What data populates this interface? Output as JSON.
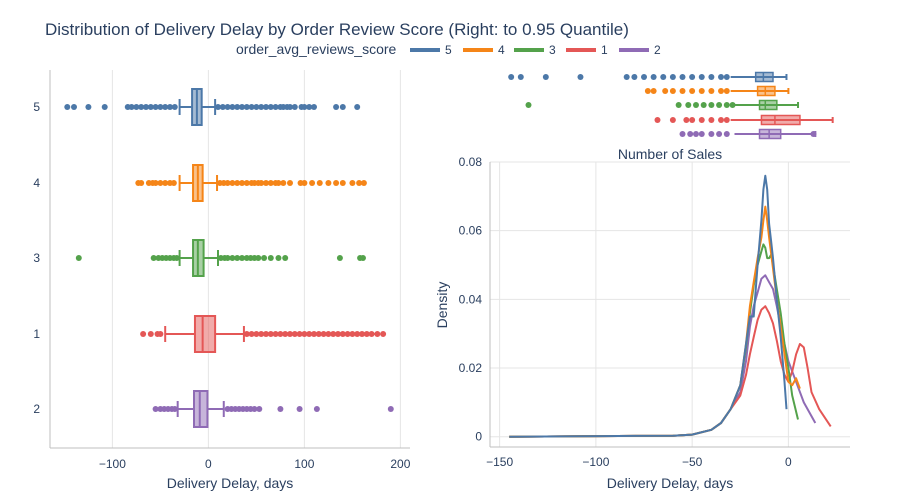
{
  "title": "Distribution of Delivery Delay by Order Review Score (Right: to 0.95 Quantile)",
  "legend": {
    "title": "order_avg_reviews_score",
    "items": [
      {
        "name": "5",
        "color": "#4c78a8"
      },
      {
        "name": "4",
        "color": "#f58518"
      },
      {
        "name": "3",
        "color": "#54a24b"
      },
      {
        "name": "1",
        "color": "#e45756"
      },
      {
        "name": "2",
        "color": "#8f6bb5"
      }
    ]
  },
  "chart_data": [
    {
      "type": "box",
      "orientation": "horizontal",
      "xlabel": "Delivery Delay, days",
      "xlim": [
        -165,
        210
      ],
      "xticks": [
        -100,
        0,
        100,
        200
      ],
      "xtick_labels": [
        "−100",
        "0",
        "100",
        "200"
      ],
      "categories": [
        "5",
        "4",
        "3",
        "1",
        "2"
      ],
      "grid": true,
      "series": [
        {
          "name": "5",
          "color": "#4c78a8",
          "q1": -17,
          "median": -12,
          "q3": -7,
          "whisker_low": -30,
          "whisker_high": 7,
          "outliers": [
            -147,
            -140,
            -125,
            -108,
            -84,
            -80,
            -75,
            -70,
            -65,
            -60,
            -55,
            -50,
            -45,
            -40,
            -35,
            10,
            15,
            20,
            25,
            30,
            35,
            40,
            45,
            50,
            55,
            60,
            65,
            70,
            75,
            78,
            82,
            85,
            90,
            97,
            100,
            105,
            110,
            133,
            140,
            155
          ]
        },
        {
          "name": "4",
          "color": "#f58518",
          "q1": -16,
          "median": -11,
          "q3": -6,
          "whisker_low": -30,
          "whisker_high": 9,
          "outliers": [
            -73,
            -70,
            -62,
            -58,
            -55,
            -50,
            -45,
            -40,
            -36,
            12,
            16,
            20,
            25,
            30,
            35,
            40,
            45,
            48,
            52,
            55,
            60,
            65,
            70,
            73,
            78,
            85,
            96,
            100,
            108,
            116,
            125,
            133,
            140,
            150,
            157,
            162
          ]
        },
        {
          "name": "3",
          "color": "#54a24b",
          "q1": -16,
          "median": -11,
          "q3": -5,
          "whisker_low": -30,
          "whisker_high": 10,
          "outliers": [
            -135,
            -57,
            -52,
            -48,
            -44,
            -40,
            -36,
            -33,
            13,
            17,
            20,
            25,
            30,
            35,
            40,
            44,
            48,
            52,
            58,
            65,
            73,
            80,
            137,
            158,
            161
          ]
        },
        {
          "name": "1",
          "color": "#e45756",
          "q1": -14,
          "median": -6,
          "q3": 7,
          "whisker_low": -45,
          "whisker_high": 37,
          "outliers": [
            -68,
            -60,
            -53,
            -50,
            40,
            45,
            50,
            55,
            60,
            65,
            70,
            75,
            80,
            85,
            90,
            95,
            100,
            105,
            110,
            115,
            120,
            125,
            130,
            135,
            140,
            145,
            150,
            155,
            160,
            165,
            170,
            176,
            182
          ]
        },
        {
          "name": "2",
          "color": "#8f6bb5",
          "q1": -15,
          "median": -9,
          "q3": -1,
          "whisker_low": -32,
          "whisker_high": 16,
          "outliers": [
            -55,
            -50,
            -46,
            -42,
            -38,
            -35,
            20,
            24,
            28,
            32,
            36,
            40,
            44,
            48,
            53,
            75,
            95,
            113,
            190
          ]
        }
      ]
    },
    {
      "type": "box",
      "orientation": "horizontal",
      "note": "top marginal box plots, truncated at 0.95 quantile",
      "categories": [
        "5",
        "4",
        "3",
        "1",
        "2"
      ],
      "series": [
        {
          "name": "5",
          "color": "#4c78a8",
          "q1": -17,
          "median": -13,
          "q3": -8,
          "whisker_low": -30,
          "whisker_high": -1,
          "outliers": [
            -144,
            -139,
            -126,
            -108,
            -84,
            -80,
            -75,
            -70,
            -65,
            -60,
            -55,
            -50,
            -45,
            -40,
            -35,
            -32
          ]
        },
        {
          "name": "4",
          "color": "#f58518",
          "q1": -16,
          "median": -12,
          "q3": -7,
          "whisker_low": -30,
          "whisker_high": 0,
          "outliers": [
            -73,
            -70,
            -64,
            -60,
            -55,
            -50,
            -45,
            -40,
            -35,
            -32
          ]
        },
        {
          "name": "3",
          "color": "#54a24b",
          "q1": -15,
          "median": -12,
          "q3": -6,
          "whisker_low": -28,
          "whisker_high": 5,
          "outliers": [
            -135,
            -57,
            -52,
            -48,
            -44,
            -40,
            -36,
            -32,
            -29
          ]
        },
        {
          "name": "1",
          "color": "#e45756",
          "q1": -14,
          "median": -7,
          "q3": 6,
          "whisker_low": -30,
          "whisker_high": 23,
          "outliers": [
            -68,
            -60,
            -53,
            -50,
            -45,
            -40,
            -35,
            -32
          ]
        },
        {
          "name": "2",
          "color": "#8f6bb5",
          "q1": -15,
          "median": -10,
          "q3": -4,
          "whisker_low": -28,
          "whisker_high": 14,
          "outliers": [
            -55,
            -51,
            -48,
            -45,
            -40,
            -36,
            -32,
            13
          ]
        }
      ]
    },
    {
      "type": "line",
      "title": "Number of Sales",
      "xlabel": "Delivery Delay, days",
      "ylabel": "Density",
      "xlim": [
        -155,
        32
      ],
      "ylim": [
        -0.003,
        0.08
      ],
      "xticks": [
        -150,
        -100,
        -50,
        0
      ],
      "xtick_labels": [
        "−150",
        "−100",
        "−50",
        "0"
      ],
      "yticks": [
        0,
        0.02,
        0.04,
        0.06,
        0.08
      ],
      "ytick_labels": [
        "0",
        "0.02",
        "0.04",
        "0.06",
        "0.08"
      ],
      "grid": true,
      "series": [
        {
          "name": "2",
          "color": "#8f6bb5",
          "x": [
            -145,
            -60,
            -50,
            -40,
            -35,
            -30,
            -25,
            -22,
            -20,
            -18,
            -16,
            -14,
            -12,
            -10,
            -8,
            -6,
            -4,
            -2,
            0,
            4,
            8,
            14
          ],
          "y": [
            0,
            0.0003,
            0.0006,
            0.002,
            0.004,
            0.008,
            0.013,
            0.022,
            0.032,
            0.038,
            0.042,
            0.046,
            0.047,
            0.045,
            0.043,
            0.038,
            0.032,
            0.027,
            0.022,
            0.016,
            0.01,
            0.004
          ]
        },
        {
          "name": "1",
          "color": "#e45756",
          "x": [
            -145,
            -60,
            -50,
            -40,
            -35,
            -30,
            -25,
            -22,
            -20,
            -18,
            -16,
            -14,
            -12,
            -10,
            -8,
            -6,
            -4,
            -2,
            0,
            2,
            4,
            6,
            8,
            10,
            12,
            16,
            22
          ],
          "y": [
            0,
            0.0003,
            0.0006,
            0.002,
            0.004,
            0.008,
            0.012,
            0.018,
            0.024,
            0.029,
            0.034,
            0.037,
            0.038,
            0.036,
            0.033,
            0.028,
            0.022,
            0.018,
            0.016,
            0.019,
            0.024,
            0.027,
            0.026,
            0.02,
            0.013,
            0.008,
            0.003
          ]
        },
        {
          "name": "3",
          "color": "#54a24b",
          "x": [
            -145,
            -60,
            -50,
            -40,
            -35,
            -30,
            -25,
            -22,
            -20,
            -18,
            -16,
            -14,
            -13,
            -12,
            -11,
            -10,
            -9,
            -8,
            -6,
            -4,
            -2,
            0,
            2,
            5
          ],
          "y": [
            0,
            0.0003,
            0.0006,
            0.002,
            0.004,
            0.008,
            0.015,
            0.026,
            0.036,
            0.044,
            0.05,
            0.054,
            0.056,
            0.055,
            0.052,
            0.052,
            0.053,
            0.05,
            0.043,
            0.036,
            0.027,
            0.02,
            0.012,
            0.005
          ]
        },
        {
          "name": "4",
          "color": "#f58518",
          "x": [
            -145,
            -60,
            -50,
            -40,
            -35,
            -30,
            -25,
            -22,
            -20,
            -18,
            -16,
            -14,
            -13,
            -12,
            -11,
            -10,
            -8,
            -6,
            -4,
            -2,
            0,
            2,
            4,
            6
          ],
          "y": [
            0,
            0.0003,
            0.0006,
            0.002,
            0.004,
            0.008,
            0.015,
            0.027,
            0.038,
            0.045,
            0.052,
            0.058,
            0.063,
            0.067,
            0.063,
            0.058,
            0.049,
            0.04,
            0.032,
            0.024,
            0.016,
            0.015,
            0.017,
            0.014
          ]
        },
        {
          "name": "5",
          "color": "#4c78a8",
          "x": [
            -145,
            -60,
            -50,
            -40,
            -35,
            -30,
            -25,
            -22,
            -20,
            -18,
            -16,
            -14,
            -13,
            -12,
            -11,
            -10,
            -9,
            -8,
            -6,
            -4,
            -2,
            -1
          ],
          "y": [
            0,
            0.0003,
            0.0006,
            0.002,
            0.004,
            0.008,
            0.015,
            0.027,
            0.035,
            0.035,
            0.05,
            0.063,
            0.072,
            0.076,
            0.072,
            0.062,
            0.057,
            0.052,
            0.04,
            0.029,
            0.016,
            0.008
          ]
        }
      ]
    }
  ]
}
